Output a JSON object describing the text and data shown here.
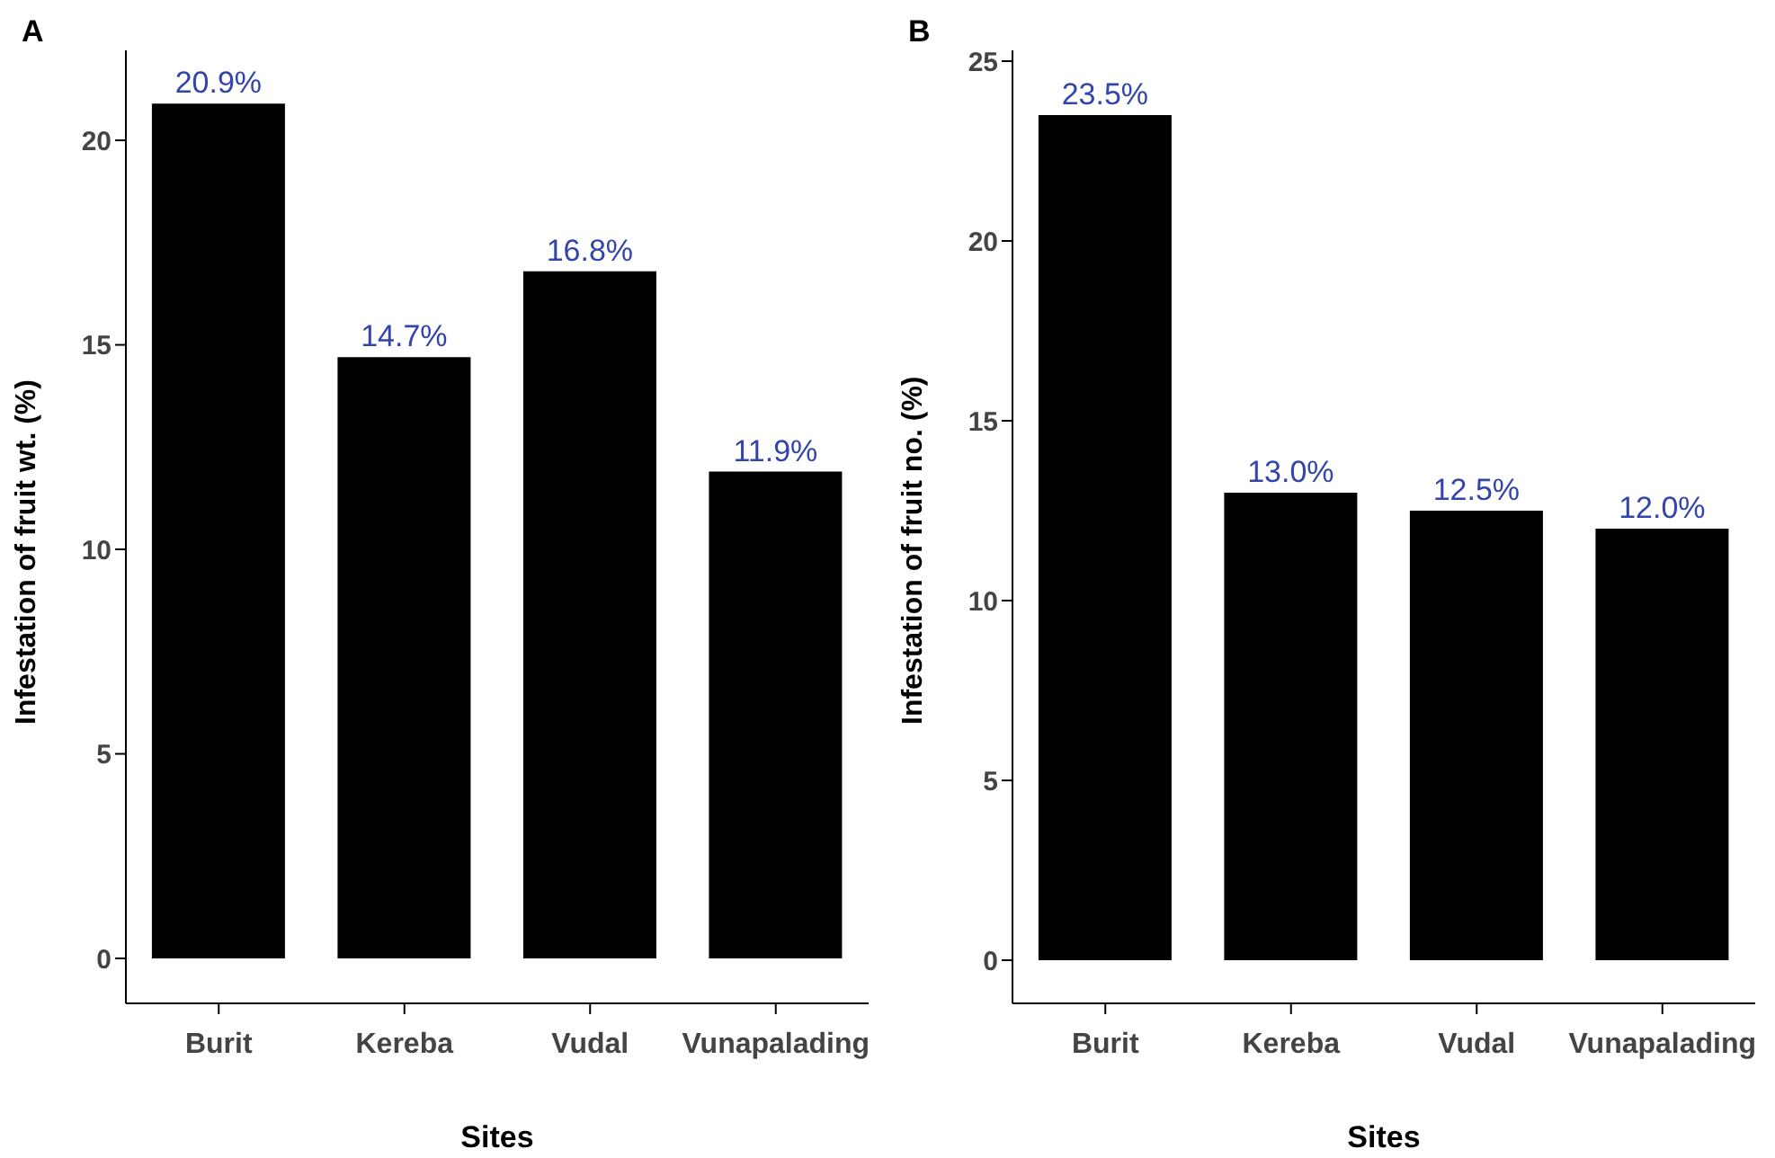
{
  "chart_data": [
    {
      "type": "bar",
      "title": "A",
      "xlabel": "Sites",
      "ylabel": "Infestation of fruit wt. (%)",
      "categories": [
        "Burit",
        "Kereba",
        "Vudal",
        "Vunapalading"
      ],
      "values": [
        20.9,
        14.7,
        16.8,
        11.9
      ],
      "value_labels": [
        "20.9%",
        "14.7%",
        "16.8%",
        "11.9%"
      ],
      "color": "#000000",
      "ylim": [
        -1.1,
        22.2
      ],
      "yticks": [
        0,
        5,
        10,
        15,
        20
      ],
      "grid": false,
      "legend": false
    },
    {
      "type": "bar",
      "title": "B",
      "xlabel": "Sites",
      "ylabel": "Infestation of fruit no. (%)",
      "categories": [
        "Burit",
        "Kereba",
        "Vudal",
        "Vunapalading"
      ],
      "values": [
        23.5,
        13.0,
        12.5,
        12.0
      ],
      "value_labels": [
        "23.5%",
        "13.0%",
        "12.5%",
        "12.0%"
      ],
      "color": "#000000",
      "ylim": [
        -1.2,
        25.3
      ],
      "yticks": [
        0,
        5,
        10,
        15,
        20,
        25
      ],
      "grid": false,
      "legend": false
    }
  ]
}
